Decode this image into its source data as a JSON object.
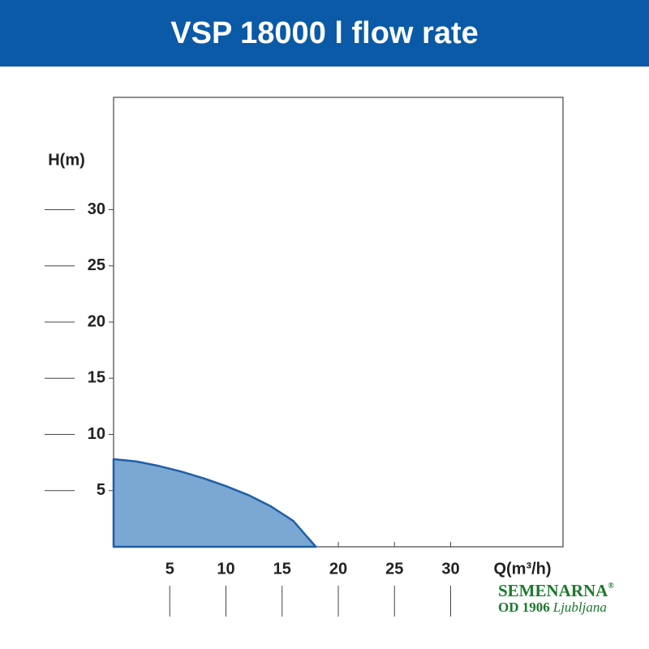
{
  "chart_data": {
    "type": "area",
    "title": "VSP 18000 l flow rate",
    "x_label": "Q(m³/h)",
    "y_label": "H(m)",
    "x": [
      0,
      2,
      4,
      6,
      8,
      10,
      12,
      14,
      16,
      18
    ],
    "values": [
      7.8,
      7.6,
      7.2,
      6.7,
      6.1,
      5.4,
      4.6,
      3.6,
      2.3,
      0
    ],
    "color": "#7ba7d3",
    "line_color": "#1f5fa6",
    "xlim": [
      0,
      40
    ],
    "ylim": [
      0,
      40
    ],
    "xticks": [
      5,
      10,
      15,
      20,
      25,
      30
    ],
    "yticks": [
      5,
      10,
      15,
      20,
      25,
      30
    ],
    "grid": false
  },
  "logo": {
    "name": "SEMENARNA",
    "mark": "®",
    "since": "OD 1906",
    "city": "Ljubljana"
  }
}
